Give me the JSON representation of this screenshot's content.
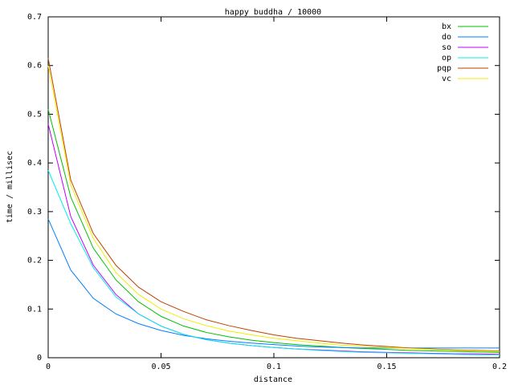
{
  "chart_data": {
    "type": "line",
    "title": "happy buddha / 10000",
    "xlabel": "distance",
    "ylabel": "time / millisec",
    "x": [
      0,
      0.01,
      0.02,
      0.03,
      0.04,
      0.05,
      0.06,
      0.07,
      0.08,
      0.09,
      0.1,
      0.11,
      0.12,
      0.13,
      0.14,
      0.15,
      0.16,
      0.17,
      0.18,
      0.19,
      0.2
    ],
    "xlim": [
      0,
      0.2
    ],
    "xticks": [
      0,
      0.05,
      0.1,
      0.15,
      0.2
    ],
    "ylim": [
      0,
      0.7
    ],
    "yticks": [
      0,
      0.1,
      0.2,
      0.3,
      0.4,
      0.5,
      0.6,
      0.7
    ],
    "grid": false,
    "legend": "top-right",
    "series": [
      {
        "name": "bx",
        "color": "#00c000",
        "values": [
          0.51,
          0.33,
          0.225,
          0.16,
          0.115,
          0.085,
          0.065,
          0.052,
          0.043,
          0.036,
          0.031,
          0.027,
          0.024,
          0.021,
          0.019,
          0.017,
          0.015,
          0.014,
          0.013,
          0.012,
          0.011
        ]
      },
      {
        "name": "do",
        "color": "#0080ff",
        "values": [
          0.285,
          0.18,
          0.122,
          0.09,
          0.07,
          0.056,
          0.046,
          0.039,
          0.034,
          0.03,
          0.027,
          0.024,
          0.022,
          0.021,
          0.02,
          0.02,
          0.02,
          0.02,
          0.02,
          0.02,
          0.02
        ]
      },
      {
        "name": "so",
        "color": "#c000ff",
        "values": [
          0.48,
          0.29,
          0.19,
          0.13,
          0.09,
          0.065,
          0.048,
          0.037,
          0.03,
          0.025,
          0.021,
          0.018,
          0.016,
          0.014,
          0.012,
          0.011,
          0.01,
          0.009,
          0.008,
          0.008,
          0.007
        ]
      },
      {
        "name": "op",
        "color": "#00eeee",
        "values": [
          0.385,
          0.275,
          0.185,
          0.125,
          0.09,
          0.065,
          0.048,
          0.037,
          0.03,
          0.025,
          0.021,
          0.018,
          0.015,
          0.013,
          0.011,
          0.01,
          0.009,
          0.008,
          0.007,
          0.006,
          0.006
        ]
      },
      {
        "name": "pqp",
        "color": "#c04000",
        "values": [
          0.615,
          0.365,
          0.255,
          0.19,
          0.145,
          0.115,
          0.095,
          0.078,
          0.066,
          0.056,
          0.047,
          0.04,
          0.035,
          0.03,
          0.026,
          0.023,
          0.02,
          0.018,
          0.016,
          0.015,
          0.014
        ]
      },
      {
        "name": "vc",
        "color": "#eeee00",
        "values": [
          0.6,
          0.355,
          0.245,
          0.175,
          0.13,
          0.1,
          0.08,
          0.066,
          0.055,
          0.047,
          0.04,
          0.035,
          0.03,
          0.026,
          0.023,
          0.021,
          0.019,
          0.017,
          0.015,
          0.014,
          0.013
        ]
      }
    ]
  }
}
